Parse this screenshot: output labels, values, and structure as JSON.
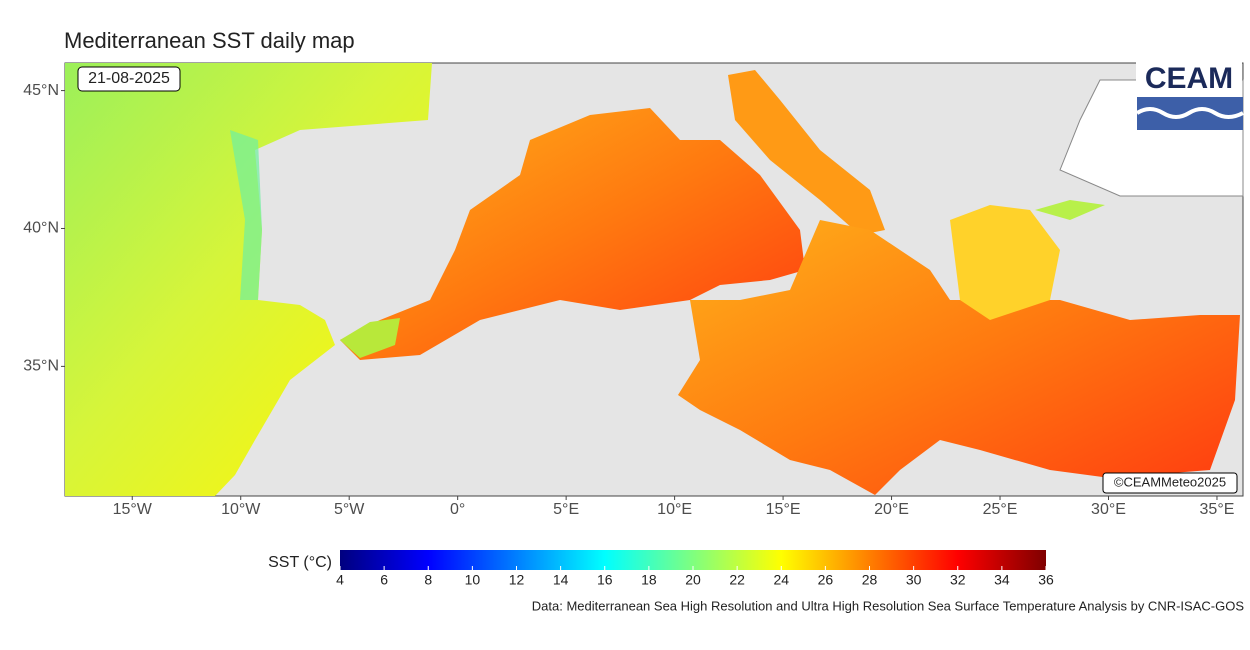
{
  "title": "Mediterranean SST daily map",
  "date_label": "21-08-2025",
  "logo": "CEAM",
  "copyright": "©CEAMMeteo2025",
  "source": "Data: Mediterranean Sea High Resolution and Ultra High Resolution Sea Surface Temperature Analysis by CNR-ISAC-GOS",
  "map": {
    "xlim": [
      -18.1,
      36.2
    ],
    "ylim": [
      30.3,
      46
    ],
    "xticks": [
      {
        "value": -15,
        "label": "15°W"
      },
      {
        "value": -10,
        "label": "10°W"
      },
      {
        "value": -5,
        "label": "5°W"
      },
      {
        "value": 0,
        "label": "0°"
      },
      {
        "value": 5,
        "label": "5°E"
      },
      {
        "value": 10,
        "label": "10°E"
      },
      {
        "value": 15,
        "label": "15°E"
      },
      {
        "value": 20,
        "label": "20°E"
      },
      {
        "value": 25,
        "label": "25°E"
      },
      {
        "value": 30,
        "label": "30°E"
      },
      {
        "value": 35,
        "label": "35°E"
      }
    ],
    "yticks": [
      {
        "value": 35,
        "label": "35°N"
      },
      {
        "value": 40,
        "label": "40°N"
      },
      {
        "value": 45,
        "label": "45°N"
      }
    ]
  },
  "colorbar": {
    "label": "SST (°C)",
    "lim": [
      4,
      36
    ],
    "ticks": [
      4,
      6,
      8,
      10,
      12,
      14,
      16,
      18,
      20,
      22,
      24,
      26,
      28,
      30,
      32,
      34,
      36
    ],
    "colors": [
      "#00007f",
      "#0000ff",
      "#007fff",
      "#00ffff",
      "#7fff7f",
      "#ffff00",
      "#ff7f00",
      "#ff0000",
      "#7f0000"
    ]
  }
}
